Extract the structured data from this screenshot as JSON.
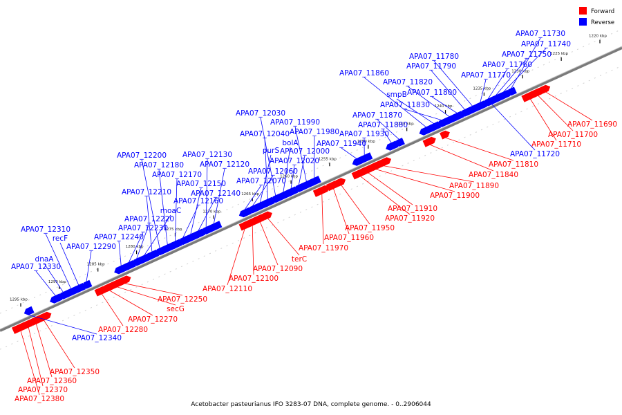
{
  "caption": "Acetobacter pasteurianus IFO 3283-07 DNA, complete genome. - 0..2906044",
  "colors": {
    "forward": "#ff0000",
    "reverse": "#0000ff",
    "backbone": "#808080"
  },
  "legend": [
    {
      "label": "Forward",
      "color": "#ff0000"
    },
    {
      "label": "Reverse",
      "color": "#0000ff"
    }
  ],
  "ruler": {
    "start_kbp": 1220,
    "end_kbp": 1295,
    "step_kbp": 5,
    "labels": [
      "1220 kbp",
      "1225 kbp",
      "1230 kbp",
      "1235 kbp",
      "1240 kbp",
      "1245 kbp",
      "1250 kbp",
      "1255 kbp",
      "1260 kbp",
      "1265 kbp",
      "1270 kbp",
      "1275 kbp",
      "1280 kbp",
      "1285 kbp",
      "1290 kbp",
      "1295 kbp"
    ]
  },
  "reverse_genes": [
    {
      "name": "APA07_11730",
      "kbp": 1231.5
    },
    {
      "name": "APA07_11740",
      "kbp": 1232.5
    },
    {
      "name": "APA07_11750",
      "kbp": 1233.5
    },
    {
      "name": "APA07_11760",
      "kbp": 1234.5
    },
    {
      "name": "APA07_11770",
      "kbp": 1235.5
    },
    {
      "name": "APA07_11780",
      "kbp": 1236.5
    },
    {
      "name": "APA07_11790",
      "kbp": 1237.5
    },
    {
      "name": "APA07_11800",
      "kbp": 1238.5
    },
    {
      "name": "APA07_11820",
      "kbp": 1239.5
    },
    {
      "name": "APA07_11830",
      "kbp": 1240.5
    },
    {
      "name": "smpB",
      "kbp": 1241.5
    },
    {
      "name": "APA07_11860",
      "kbp": 1242.5
    },
    {
      "name": "APA07_11870",
      "kbp": 1246.0
    },
    {
      "name": "APA07_11880",
      "kbp": 1247.0
    },
    {
      "name": "APA07_11930",
      "kbp": 1250.5
    },
    {
      "name": "APA07_11940",
      "kbp": 1251.5
    },
    {
      "name": "APA07_11980",
      "kbp": 1257.0
    },
    {
      "name": "APA07_11990",
      "kbp": 1258.0
    },
    {
      "name": "APA07_12000",
      "kbp": 1259.0
    },
    {
      "name": "APA07_12020",
      "kbp": 1260.0
    },
    {
      "name": "bolA",
      "kbp": 1261.0
    },
    {
      "name": "APA07_12030",
      "kbp": 1262.0
    },
    {
      "name": "APA07_12040",
      "kbp": 1263.0
    },
    {
      "name": "purS",
      "kbp": 1264.0
    },
    {
      "name": "APA07_12060",
      "kbp": 1265.0
    },
    {
      "name": "APA07_12070",
      "kbp": 1266.0
    },
    {
      "name": "APA07_12120",
      "kbp": 1270.0
    },
    {
      "name": "APA07_12130",
      "kbp": 1271.0
    },
    {
      "name": "APA07_12140",
      "kbp": 1272.0
    },
    {
      "name": "APA07_12150",
      "kbp": 1273.0
    },
    {
      "name": "APA07_12160",
      "kbp": 1274.0
    },
    {
      "name": "APA07_12170",
      "kbp": 1275.0
    },
    {
      "name": "APA07_12180",
      "kbp": 1276.0
    },
    {
      "name": "APA07_12200",
      "kbp": 1277.0
    },
    {
      "name": "APA07_12210",
      "kbp": 1278.0
    },
    {
      "name": "moaC",
      "kbp": 1279.0
    },
    {
      "name": "APA07_12220",
      "kbp": 1280.0
    },
    {
      "name": "APA07_12230",
      "kbp": 1281.0
    },
    {
      "name": "APA07_12240",
      "kbp": 1282.0
    },
    {
      "name": "APA07_12290",
      "kbp": 1286.5
    },
    {
      "name": "recF",
      "kbp": 1287.5
    },
    {
      "name": "APA07_12310",
      "kbp": 1288.5
    },
    {
      "name": "dnaA",
      "kbp": 1289.5
    },
    {
      "name": "APA07_12330",
      "kbp": 1290.5
    },
    {
      "name": "APA07_11720",
      "kbp": 1234.0
    },
    {
      "name": "APA07_12340",
      "kbp": 1294.0
    }
  ],
  "forward_genes": [
    {
      "name": "APA07_11690",
      "kbp": 1227.0
    },
    {
      "name": "APA07_11700",
      "kbp": 1228.0
    },
    {
      "name": "APA07_11710",
      "kbp": 1229.0
    },
    {
      "name": "APA07_11810",
      "kbp": 1240.0
    },
    {
      "name": "APA07_11840",
      "kbp": 1242.0
    },
    {
      "name": "APA07_11890",
      "kbp": 1248.0
    },
    {
      "name": "APA07_11900",
      "kbp": 1249.0
    },
    {
      "name": "APA07_11910",
      "kbp": 1250.0
    },
    {
      "name": "APA07_11920",
      "kbp": 1251.0
    },
    {
      "name": "APA07_11950",
      "kbp": 1253.5
    },
    {
      "name": "APA07_11960",
      "kbp": 1254.5
    },
    {
      "name": "APA07_11970",
      "kbp": 1256.0
    },
    {
      "name": "terC",
      "kbp": 1263.0
    },
    {
      "name": "APA07_12090",
      "kbp": 1264.0
    },
    {
      "name": "APA07_12100",
      "kbp": 1265.0
    },
    {
      "name": "APA07_12110",
      "kbp": 1266.0
    },
    {
      "name": "APA07_12250",
      "kbp": 1281.5
    },
    {
      "name": "secG",
      "kbp": 1282.5
    },
    {
      "name": "APA07_12270",
      "kbp": 1283.5
    },
    {
      "name": "APA07_12280",
      "kbp": 1284.5
    },
    {
      "name": "APA07_12350",
      "kbp": 1292.0
    },
    {
      "name": "APA07_12360",
      "kbp": 1293.0
    },
    {
      "name": "APA07_12370",
      "kbp": 1294.0
    },
    {
      "name": "APA07_12380",
      "kbp": 1295.0
    }
  ]
}
